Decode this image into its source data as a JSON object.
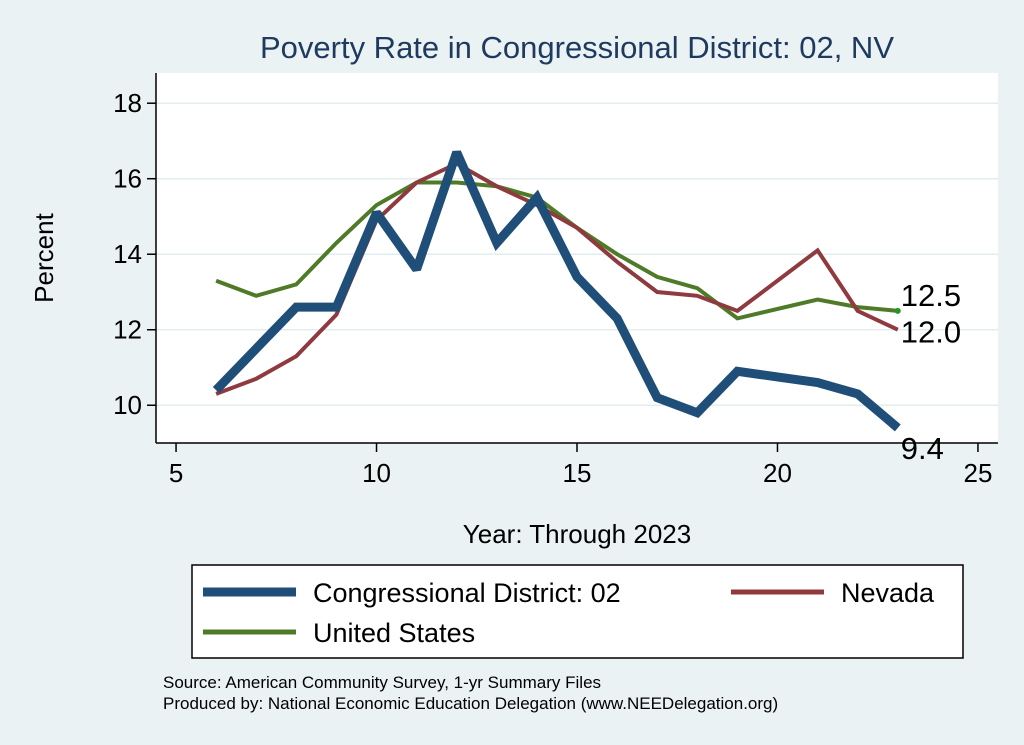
{
  "chart_data": {
    "type": "line",
    "title": "Poverty Rate in Congressional District:  02, NV",
    "xlabel": "Year: Through 2023",
    "ylabel": "Percent",
    "xlim": [
      4.5,
      25.5
    ],
    "ylim": [
      9.0,
      18.8
    ],
    "x_ticks": [
      5,
      10,
      15,
      20,
      25
    ],
    "y_ticks": [
      10,
      12,
      14,
      16,
      18
    ],
    "grid": true,
    "legend_position": "bottom",
    "series": [
      {
        "name": "Congressional District:  02",
        "color": "#1f4e79",
        "width": 9,
        "x": [
          6,
          7,
          8,
          9,
          10,
          11,
          12,
          13,
          14,
          15,
          16,
          17,
          18,
          19,
          21,
          22,
          23
        ],
        "y": [
          10.4,
          11.5,
          12.6,
          12.6,
          15.1,
          13.6,
          16.7,
          14.3,
          15.5,
          13.4,
          12.3,
          10.2,
          9.8,
          10.9,
          10.6,
          10.3,
          9.4
        ],
        "end_label": "9.4"
      },
      {
        "name": "Nevada",
        "color": "#8e3a3f",
        "width": 4,
        "x": [
          6,
          7,
          8,
          9,
          10,
          11,
          12,
          13,
          14,
          15,
          16,
          17,
          18,
          19,
          21,
          22,
          23
        ],
        "y": [
          10.3,
          10.7,
          11.3,
          12.4,
          14.9,
          15.9,
          16.4,
          15.8,
          15.3,
          14.7,
          13.8,
          13.0,
          12.9,
          12.5,
          14.1,
          12.5,
          12.0
        ],
        "end_label": "12.0"
      },
      {
        "name": "United States",
        "color": "#4f7a28",
        "width": 4,
        "x": [
          6,
          7,
          8,
          9,
          10,
          11,
          12,
          13,
          14,
          15,
          16,
          17,
          18,
          19,
          21,
          22,
          23
        ],
        "y": [
          13.3,
          12.9,
          13.2,
          14.3,
          15.3,
          15.9,
          15.9,
          15.8,
          15.5,
          14.7,
          14.0,
          13.4,
          13.1,
          12.3,
          12.8,
          12.6,
          12.5
        ],
        "end_label": "12.5"
      }
    ],
    "notes": [
      "Source: American Community Survey, 1-yr Summary Files",
      "Produced by: National Economic Education Delegation (www.NEEDelegation.org)"
    ]
  }
}
